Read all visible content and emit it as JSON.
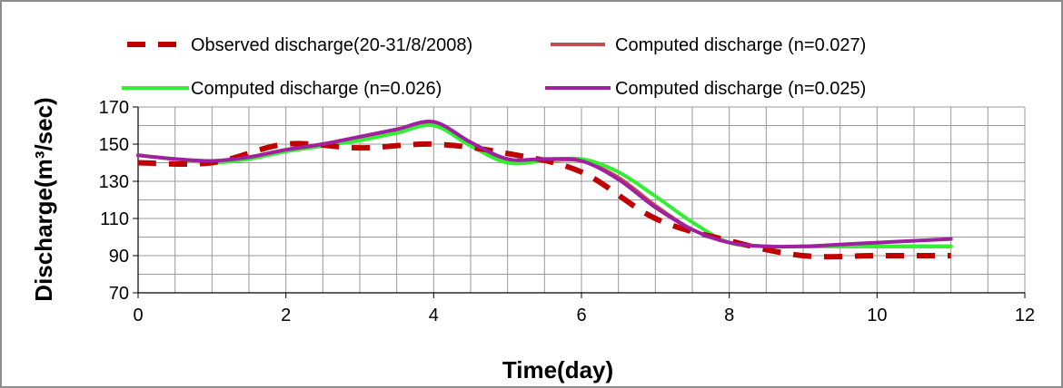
{
  "chart_data": {
    "type": "line",
    "xlabel": "Time(day)",
    "ylabel": "Discharge(m³/sec)",
    "xlim": [
      0,
      12
    ],
    "ylim": [
      70,
      170
    ],
    "xticks": [
      0,
      2,
      4,
      6,
      8,
      10,
      12
    ],
    "yticks": [
      70,
      90,
      110,
      130,
      150,
      170
    ],
    "grid": true,
    "legend_position": "top",
    "series": [
      {
        "name": "Observed discharge(20-31/8/2008)",
        "color": "#c00000",
        "dash": "dashed",
        "x": [
          0,
          1,
          2,
          3,
          4,
          5,
          6,
          7,
          8,
          9,
          10,
          11
        ],
        "y": [
          140,
          140,
          150,
          148,
          150,
          145,
          135,
          110,
          98,
          90,
          90,
          90
        ]
      },
      {
        "name": "Computed discharge (n=0.027)",
        "color": "#c0504d",
        "dash": "solid",
        "x": [
          0,
          0.5,
          1,
          1.5,
          2,
          2.5,
          3,
          3.5,
          4,
          4.5,
          5,
          5.5,
          6,
          6.5,
          7,
          7.5,
          8,
          8.5,
          9,
          9.5,
          10,
          10.5,
          11
        ],
        "y": [
          144,
          142,
          141,
          143,
          147,
          150,
          153,
          157,
          161,
          150,
          141,
          141,
          141,
          132,
          117,
          104,
          97,
          95,
          95,
          95,
          95,
          95,
          95
        ]
      },
      {
        "name": "Computed discharge (n=0.026)",
        "color": "#33ee33",
        "dash": "solid",
        "x": [
          0,
          0.5,
          1,
          1.5,
          2,
          2.5,
          3,
          3.5,
          4,
          4.5,
          5,
          5.5,
          6,
          6.5,
          7,
          7.5,
          8,
          8.5,
          9,
          9.5,
          10,
          10.5,
          11
        ],
        "y": [
          144,
          142,
          140,
          142,
          146,
          149,
          152,
          156,
          160,
          149,
          140,
          141,
          142,
          135,
          122,
          108,
          97,
          95,
          95,
          95,
          95,
          95,
          95
        ]
      },
      {
        "name": "Computed discharge (n=0.025)",
        "color": "#a020a0",
        "dash": "solid",
        "x": [
          0,
          0.5,
          1,
          1.5,
          2,
          2.5,
          3,
          3.5,
          4,
          4.5,
          5,
          5.5,
          6,
          6.5,
          7,
          7.5,
          8,
          8.5,
          9,
          9.5,
          10,
          10.5,
          11
        ],
        "y": [
          144,
          142,
          141,
          143,
          147,
          150,
          154,
          158,
          162,
          151,
          142,
          142,
          141,
          131,
          116,
          104,
          97,
          95,
          95,
          96,
          97,
          98,
          99
        ]
      }
    ]
  }
}
